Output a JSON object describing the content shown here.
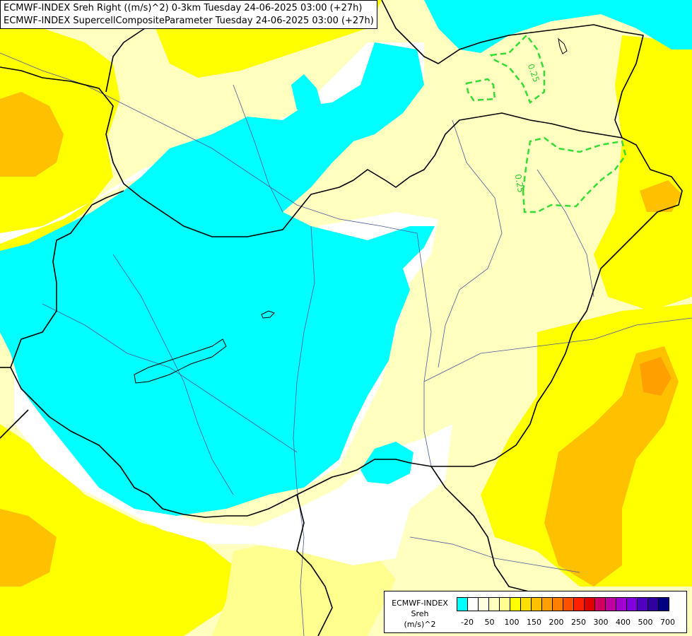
{
  "header": {
    "line1": "ECMWF-INDEX Sreh Right ((m/s)^2) 0-3km Tuesday 24-06-2025 03:00 (+27h)",
    "line2": "ECMWF-INDEX SupercellCompositeParameter Tuesday 24-06-2025 03:00 (+27h)"
  },
  "contour_labels": [
    "0.25",
    "0.25"
  ],
  "legend": {
    "title": "ECMWF-INDEX",
    "variable": "Sreh",
    "unit": "(m/s)^2",
    "ticks": [
      "-20",
      "50",
      "100",
      "150",
      "200",
      "250",
      "300",
      "400",
      "500",
      "700"
    ],
    "colors": [
      "#00ffff",
      "#ffffff",
      "#ffffe0",
      "#ffffc0",
      "#ffff90",
      "#ffff00",
      "#ffe000",
      "#ffc000",
      "#ffa000",
      "#ff8000",
      "#ff5000",
      "#ff2000",
      "#e00000",
      "#d00060",
      "#c000a0",
      "#a000d0",
      "#8000e0",
      "#5000c0",
      "#3000a0",
      "#000080"
    ]
  }
}
